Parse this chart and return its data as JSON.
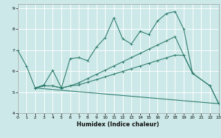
{
  "title": "",
  "xlabel": "Humidex (Indice chaleur)",
  "background_color": "#cce8e8",
  "grid_color": "#ffffff",
  "line_color": "#2a7a6a",
  "xlim": [
    0,
    23
  ],
  "ylim": [
    4,
    9.2
  ],
  "yticks": [
    4,
    5,
    6,
    7,
    8,
    9
  ],
  "xticks": [
    0,
    1,
    2,
    3,
    4,
    5,
    6,
    7,
    8,
    9,
    10,
    11,
    12,
    13,
    14,
    15,
    16,
    17,
    18,
    19,
    20,
    21,
    22,
    23
  ],
  "curves": [
    {
      "x": [
        0,
        1,
        2,
        3,
        4,
        5,
        6,
        7,
        8,
        9,
        10,
        11,
        12,
        13,
        14,
        15,
        16,
        17,
        18,
        19,
        20
      ],
      "y": [
        7.0,
        6.25,
        5.2,
        5.35,
        6.05,
        5.2,
        6.6,
        6.65,
        6.5,
        7.15,
        7.6,
        8.55,
        7.55,
        7.3,
        7.9,
        7.75,
        8.4,
        8.75,
        8.85,
        8.0,
        5.9
      ],
      "marker": true
    },
    {
      "x": [
        2,
        3,
        4,
        5,
        6,
        7,
        8,
        9,
        10,
        11,
        12,
        13,
        14,
        15,
        16,
        17,
        18,
        19,
        20,
        22,
        23
      ],
      "y": [
        5.2,
        5.3,
        5.3,
        5.2,
        5.3,
        5.45,
        5.65,
        5.85,
        6.05,
        6.25,
        6.45,
        6.65,
        6.85,
        7.05,
        7.25,
        7.45,
        7.65,
        6.75,
        5.9,
        5.3,
        4.45
      ],
      "marker": true
    },
    {
      "x": [
        2,
        3,
        4,
        5,
        6,
        7,
        8,
        9,
        10,
        11,
        12,
        13,
        14,
        15,
        16,
        17,
        18,
        19,
        20,
        22,
        23
      ],
      "y": [
        5.2,
        5.3,
        5.3,
        5.2,
        5.3,
        5.35,
        5.48,
        5.6,
        5.73,
        5.86,
        5.99,
        6.12,
        6.25,
        6.38,
        6.51,
        6.64,
        6.77,
        6.75,
        5.9,
        5.3,
        4.45
      ],
      "marker": true
    },
    {
      "x": [
        2,
        23
      ],
      "y": [
        5.2,
        4.45
      ],
      "marker": false
    }
  ]
}
